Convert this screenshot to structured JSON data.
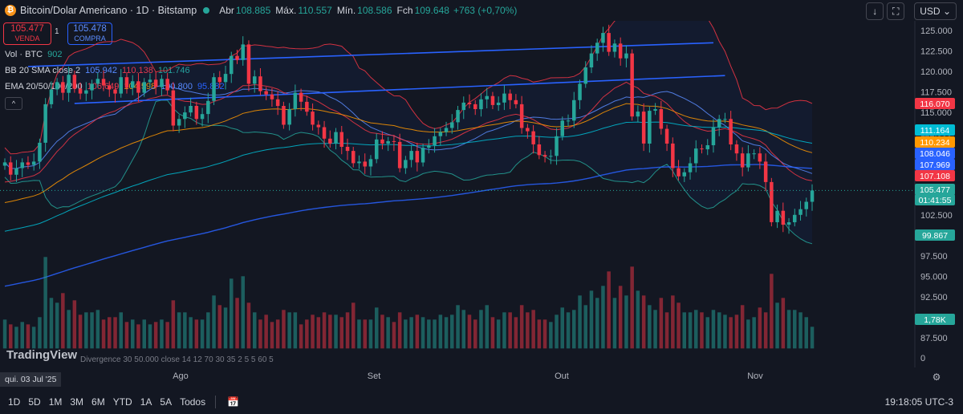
{
  "header": {
    "symbol_icon": "bitcoin-icon",
    "title": "Bitcoin/Dolar Americano · 1D · Bitstamp",
    "open_label": "Abr",
    "open": "108.885",
    "high_label": "Máx.",
    "high": "110.557",
    "low_label": "Mín.",
    "low": "108.586",
    "close_label": "Fch",
    "close": "109.648",
    "change": "+763 (+0,70%)",
    "currency": "USD"
  },
  "trade": {
    "sell_price": "105.477",
    "sell_label": "VENDA",
    "spread": "1",
    "buy_price": "105.478",
    "buy_label": "COMPRA"
  },
  "legends": {
    "vol": {
      "name": "Vol · BTC",
      "value": "902"
    },
    "bb": {
      "name": "BB 20 SMA close 2",
      "v1": "105.942",
      "v2": "110.138",
      "v3": "101.746"
    },
    "ema": {
      "name": "EMA 20/50/100/200",
      "v1": "106.649",
      "v2": "104.598",
      "v3": "100.800",
      "v4": "95.882"
    },
    "divergence": "Divergence 30 50.000 close 14 12 70 30 35 2 5 5 60 5"
  },
  "colors": {
    "up": "#26a69a",
    "down": "#f23645",
    "bb_upper": "#f23645",
    "bb_basis": "#2962ff",
    "bb_lower": "#26a69a",
    "ema20": "#f23645",
    "ema50": "#ff9800",
    "ema100": "#2962ff",
    "ema200": "#2962ff",
    "trendline": "#2962ff",
    "background": "#131722"
  },
  "bottom": {
    "timeframes": [
      "1D",
      "5D",
      "1M",
      "3M",
      "6M",
      "YTD",
      "1A",
      "5A",
      "Todos"
    ],
    "clock": "19:18:05 UTC-3",
    "cursor_date": "qui. 03 Jul '25",
    "brand": "TradingView"
  },
  "chart_data": {
    "type": "candlestick",
    "x_range": [
      "2025-07-03",
      "2025-11-11"
    ],
    "x_ticks": [
      "Ago",
      "Set",
      "Out",
      "Nov"
    ],
    "y_ticks": [
      "125.000",
      "122.500",
      "120.000",
      "117.500",
      "115.000",
      "112.500",
      "110.000",
      "107.500",
      "105.000",
      "102.500",
      "100.000",
      "97.500",
      "95.000",
      "92.500",
      "90.000",
      "87.500",
      "0"
    ],
    "ylim": [
      86000,
      127000
    ],
    "price_labels": [
      {
        "value": "116.070",
        "color": "#f23645"
      },
      {
        "value": "111.164",
        "color": "#00bcd4"
      },
      {
        "value": "110.234",
        "color": "#ff9800"
      },
      {
        "value": "108.046",
        "color": "#2962ff"
      },
      {
        "value": "107.969",
        "color": "#2962ff"
      },
      {
        "value": "107.108",
        "color": "#f23645"
      },
      {
        "value": "105.477",
        "color": "#26a69a"
      },
      {
        "value": "01:41:55",
        "color": "#26a69a"
      },
      {
        "value": "99.867",
        "color": "#26a69a"
      },
      {
        "value": "1,78K",
        "color": "#26a69a"
      }
    ],
    "closes": [
      108900,
      107400,
      108200,
      108900,
      108600,
      109000,
      111300,
      116000,
      117800,
      118700,
      117400,
      119600,
      117900,
      117300,
      117700,
      118500,
      119100,
      118300,
      117800,
      117300,
      119300,
      118000,
      118800,
      117400,
      118700,
      119000,
      118100,
      119100,
      117700,
      113400,
      114200,
      115000,
      115800,
      114200,
      114800,
      116400,
      119300,
      118700,
      119700,
      121900,
      121400,
      123300,
      118500,
      119400,
      117600,
      117200,
      116600,
      115800,
      113500,
      115400,
      117400,
      116300,
      115100,
      113500,
      113200,
      111800,
      111200,
      112600,
      110800,
      110300,
      108800,
      109000,
      108400,
      109300,
      111700,
      111200,
      111500,
      111400,
      108200,
      109200,
      110300,
      108900,
      110700,
      111000,
      112100,
      112600,
      113100,
      113800,
      115300,
      116200,
      116000,
      115400,
      116600,
      117000,
      115900,
      116200,
      117300,
      116500,
      116000,
      113100,
      112700,
      111100,
      109800,
      109600,
      109700,
      112100,
      114000,
      114000,
      116500,
      118500,
      120500,
      122200,
      123500,
      124700,
      122400,
      123400,
      121600,
      122200,
      114500,
      115100,
      111200,
      115200,
      115400,
      113000,
      111200,
      108200,
      107200,
      107700,
      108800,
      110600,
      110500,
      111000,
      113200,
      114200,
      114200,
      111100,
      110000,
      108300,
      110000,
      110000,
      109000,
      106500,
      101600,
      103000,
      101300,
      101600,
      102500,
      103200,
      104100,
      105477
    ],
    "volumes": [
      1.2,
      1.0,
      0.9,
      1.1,
      1.0,
      0.9,
      1.3,
      3.8,
      2.1,
      1.9,
      2.3,
      1.6,
      2.0,
      1.4,
      1.5,
      1.5,
      1.6,
      1.2,
      1.3,
      1.3,
      1.5,
      1.1,
      1.2,
      1.0,
      1.2,
      1.0,
      1.1,
      1.2,
      1.1,
      2.0,
      1.5,
      1.5,
      1.3,
      1.2,
      1.2,
      1.5,
      2.2,
      1.8,
      1.7,
      2.9,
      2.1,
      3.0,
      1.9,
      1.5,
      1.2,
      1.4,
      1.1,
      1.2,
      1.6,
      1.5,
      1.5,
      1.0,
      1.2,
      1.4,
      1.3,
      1.5,
      1.4,
      1.4,
      1.3,
      1.5,
      1.9,
      1.2,
      1.2,
      1.2,
      1.7,
      1.4,
      1.3,
      1.1,
      1.5,
      1.2,
      1.3,
      1.4,
      1.3,
      1.2,
      1.2,
      1.4,
      1.3,
      1.4,
      1.8,
      1.6,
      1.4,
      1.2,
      1.6,
      1.8,
      1.3,
      1.2,
      1.5,
      1.5,
      1.3,
      1.8,
      1.5,
      1.6,
      1.2,
      1.2,
      1.1,
      1.4,
      1.7,
      1.5,
      1.6,
      2.2,
      1.8,
      2.4,
      2.1,
      2.6,
      3.2,
      2.1,
      2.6,
      2.2,
      3.4,
      2.4,
      2.2,
      1.8,
      1.6,
      2.1,
      1.5,
      2.2,
      1.9,
      1.5,
      1.5,
      1.6,
      1.5,
      1.3,
      1.6,
      1.5,
      1.4,
      1.3,
      1.4,
      1.8,
      1.2,
      1.3,
      1.7,
      1.5,
      3.1,
      1.9,
      2.1,
      1.6,
      1.6,
      1.5,
      1.3,
      0.9
    ]
  }
}
